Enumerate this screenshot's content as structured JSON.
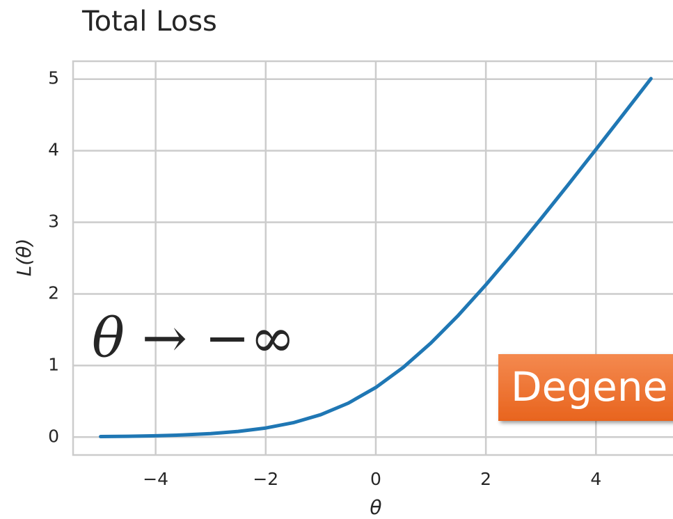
{
  "chart_data": {
    "type": "line",
    "title": "Total Loss",
    "x_label": "θ",
    "y_label": "L(θ)",
    "annotations": [
      "θ → −∞",
      "Degene"
    ],
    "x": [
      -5,
      -4.5,
      -4,
      -3.5,
      -3,
      -2.5,
      -2,
      -1.5,
      -1,
      -0.5,
      0,
      0.5,
      1,
      1.5,
      2,
      2.5,
      3,
      3.5,
      4,
      4.5,
      5
    ],
    "series": [
      {
        "name": "L(θ)",
        "color": "#1f77b4",
        "values": [
          0.007,
          0.011,
          0.018,
          0.03,
          0.049,
          0.079,
          0.127,
          0.201,
          0.313,
          0.474,
          0.693,
          0.974,
          1.313,
          1.701,
          2.127,
          2.579,
          3.049,
          3.53,
          4.018,
          4.511,
          5.007
        ]
      }
    ],
    "xlim": [
      -5.5,
      5.4
    ],
    "ylim": [
      -0.25,
      5.25
    ],
    "xticks": [
      {
        "value": -4,
        "label": "−4"
      },
      {
        "value": -2,
        "label": "−2"
      },
      0,
      2,
      4
    ],
    "yticks": [
      0,
      1,
      2,
      3,
      4,
      5
    ],
    "grid": true
  }
}
